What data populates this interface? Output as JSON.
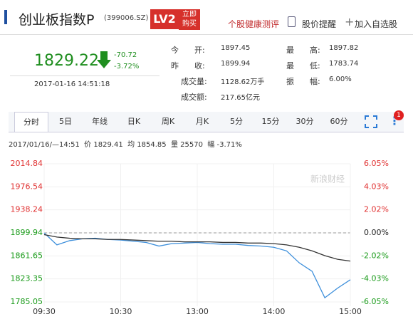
{
  "header": {
    "title": "创业板指数P",
    "code": "(399006.SZ)",
    "lv2": "LV2",
    "buy": [
      "立即",
      "购买"
    ],
    "links": [
      "个股健康测评",
      "股价提醒",
      "加入自选股"
    ]
  },
  "quote": {
    "price": "1829.22",
    "change": "-70.72",
    "change_pct": "-3.72%",
    "time": "2017-01-16 14:51:18"
  },
  "stats": [
    [
      "今　　开:",
      "1897.45",
      "最　　高:",
      "1897.82"
    ],
    [
      "昨　　收:",
      "1899.94",
      "最　　低:",
      "1783.74"
    ],
    [
      "成交量:",
      "1128.62万手",
      "振　　幅:",
      "6.00%"
    ],
    [
      "成交额:",
      "217.65亿元"
    ]
  ],
  "tabs": [
    "分时",
    "5日",
    "年线",
    "日K",
    "周K",
    "月K",
    "5分",
    "15分",
    "30分",
    "60分"
  ],
  "badge": "1",
  "info": "2017/01/16/—14:51  价 1829.41  均 1854.85  量 25570  幅 -3.71%",
  "watermark": "新浪财经",
  "chart_data": {
    "type": "line",
    "x": [
      0,
      10,
      20,
      30,
      40,
      50,
      60,
      70,
      80,
      90,
      100,
      110,
      120,
      130,
      140,
      150,
      160,
      170,
      180,
      190,
      200,
      210,
      220,
      230,
      240
    ],
    "xlim": [
      0,
      240
    ],
    "xticks": [
      {
        "value": 0,
        "label": "09:30"
      },
      {
        "value": 60,
        "label": "10:30"
      },
      {
        "value": 120,
        "label": "13:00"
      },
      {
        "value": 180,
        "label": "14:00"
      },
      {
        "value": 240,
        "label": "15:00"
      }
    ],
    "ylim": [
      1785.05,
      2014.84
    ],
    "yticks": [
      1785.05,
      1823.35,
      1861.65,
      1899.94,
      1938.24,
      1976.54,
      2014.84
    ],
    "y2lim": [
      -6.05,
      6.05
    ],
    "y2ticks": [
      {
        "value": -6.05,
        "label": "-6.05%"
      },
      {
        "value": -4.03,
        "label": "-4.03%"
      },
      {
        "value": -2.02,
        "label": "-2.02%"
      },
      {
        "value": 0,
        "label": "0.00%"
      },
      {
        "value": 2.02,
        "label": "2.02%"
      },
      {
        "value": 4.03,
        "label": "4.03%"
      },
      {
        "value": 6.05,
        "label": "6.05%"
      }
    ],
    "series": [
      {
        "color": "#3d8fdb",
        "values": [
          1899.9,
          1880,
          1887,
          1890,
          1891,
          1889,
          1888,
          1886,
          1884,
          1878,
          1882,
          1883,
          1884,
          1882,
          1881,
          1881,
          1879,
          1878,
          1876,
          1870,
          1850,
          1836,
          1792,
          1808,
          1822
        ]
      },
      {
        "color": "#333333",
        "values": [
          1897,
          1893,
          1891,
          1890,
          1890,
          1889,
          1889,
          1888,
          1887,
          1886,
          1886,
          1885,
          1885,
          1885,
          1884,
          1884,
          1883,
          1883,
          1882,
          1880,
          1876,
          1870,
          1862,
          1856,
          1853
        ]
      }
    ]
  }
}
